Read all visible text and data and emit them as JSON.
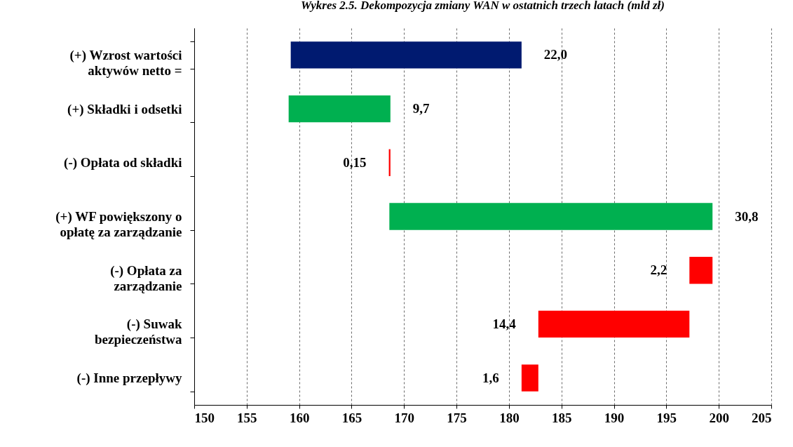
{
  "chart_data": {
    "type": "bar",
    "orientation": "horizontal",
    "title": "Wykres 2.5. Dekompozycja zmiany WAN w ostatnich trzech latach (mld zł)",
    "categories": [
      "(+) Wzrost wartości aktywów netto =",
      "(+) Składki i odsetki",
      "(-) Opłata od składki",
      "(+) WF powiększony o opłatę za zarządzanie",
      "(-) Opłata za zarządzanie",
      "(-) Suwak bezpieczeństwa",
      "(-) Inne przepływy"
    ],
    "base": [
      159.2,
      159.0,
      168.7,
      168.6,
      199.4,
      197.2,
      182.8
    ],
    "values": [
      22.0,
      9.7,
      -0.15,
      30.8,
      -2.2,
      -14.4,
      -1.6
    ],
    "value_labels": [
      "22,0",
      "9,7",
      "0,15",
      "30,8",
      "2,2",
      "14,4",
      "1,6"
    ],
    "colors": [
      "#001a70",
      "#00b050",
      "#ff0000",
      "#00b050",
      "#ff0000",
      "#ff0000",
      "#ff0000"
    ],
    "xlim": [
      150,
      205
    ],
    "xticks": [
      150,
      155,
      160,
      165,
      170,
      175,
      180,
      185,
      190,
      195,
      200,
      205
    ],
    "grid": "x"
  }
}
